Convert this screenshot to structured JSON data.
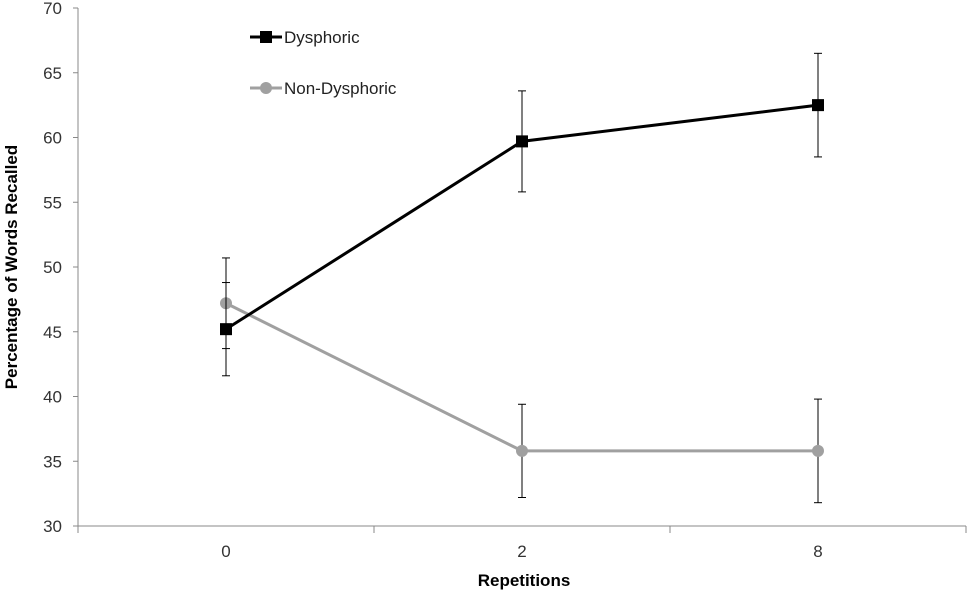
{
  "chart_data": {
    "type": "line",
    "categories": [
      "0",
      "2",
      "8"
    ],
    "xlabel": "Repetitions",
    "ylabel": "Percentage of Words Recalled",
    "ylim": [
      30,
      70
    ],
    "yticks": [
      30,
      35,
      40,
      45,
      50,
      55,
      60,
      65,
      70
    ],
    "grid": false,
    "legend_position": "top-left",
    "series": [
      {
        "name": "Dysphoric",
        "values": [
          45.2,
          59.7,
          62.5
        ],
        "error": [
          3.6,
          3.9,
          4.0
        ],
        "color": "#000000",
        "marker": "square"
      },
      {
        "name": "Non-Dysphoric",
        "values": [
          47.2,
          35.8,
          35.8
        ],
        "error": [
          3.5,
          3.6,
          4.0
        ],
        "color": "#a0a0a0",
        "marker": "circle"
      }
    ]
  }
}
